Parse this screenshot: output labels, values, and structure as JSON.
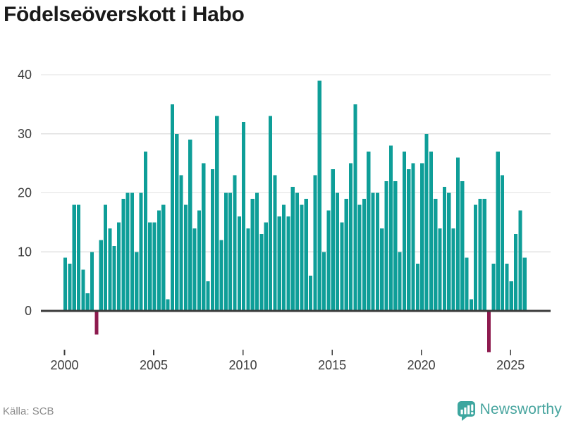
{
  "title": "Födelseöverskott i Habo",
  "source": "Källa: SCB",
  "logo": {
    "text": "Newsworthy",
    "icon": "bar-chart-speech-bubble-icon"
  },
  "colors": {
    "bar_positive": "#0e9e98",
    "bar_negative": "#8d1a4e",
    "grid": "#e2e2e2",
    "zero_line": "#3a3a3a",
    "axis_text": "#3d3d3d",
    "title_text": "#1a1a1a",
    "source_text": "#8c8c8c",
    "logo_teal": "#3da69f"
  },
  "chart_data": {
    "type": "bar",
    "title": "Födelseöverskott i Habo",
    "frequency": "quarterly",
    "x_start": "2000Q1",
    "x_end": "2025Q4",
    "x_tick_labels": [
      "2000",
      "2005",
      "2010",
      "2015",
      "2020",
      "2025"
    ],
    "y_tick_values": [
      0,
      10,
      20,
      30,
      40
    ],
    "y_tick_labels": [
      "0",
      "10",
      "20",
      "30",
      "40"
    ],
    "ylim": [
      -8,
      42
    ],
    "grid": "horizontal",
    "negative_values_highlighted": true,
    "values": [
      9,
      8,
      18,
      18,
      7,
      3,
      10,
      -4,
      12,
      18,
      14,
      11,
      15,
      19,
      20,
      20,
      10,
      20,
      27,
      15,
      15,
      17,
      18,
      2,
      35,
      30,
      23,
      18,
      29,
      14,
      17,
      25,
      5,
      24,
      33,
      12,
      20,
      20,
      23,
      16,
      32,
      14,
      19,
      20,
      13,
      15,
      33,
      23,
      16,
      18,
      16,
      21,
      20,
      18,
      19,
      6,
      23,
      39,
      10,
      17,
      24,
      20,
      15,
      19,
      25,
      35,
      18,
      19,
      27,
      20,
      20,
      14,
      22,
      28,
      22,
      10,
      27,
      24,
      25,
      8,
      25,
      30,
      27,
      19,
      14,
      21,
      20,
      14,
      26,
      22,
      9,
      2,
      18,
      19,
      19,
      -7,
      8,
      27,
      23,
      8,
      5,
      13,
      17,
      9
    ]
  }
}
